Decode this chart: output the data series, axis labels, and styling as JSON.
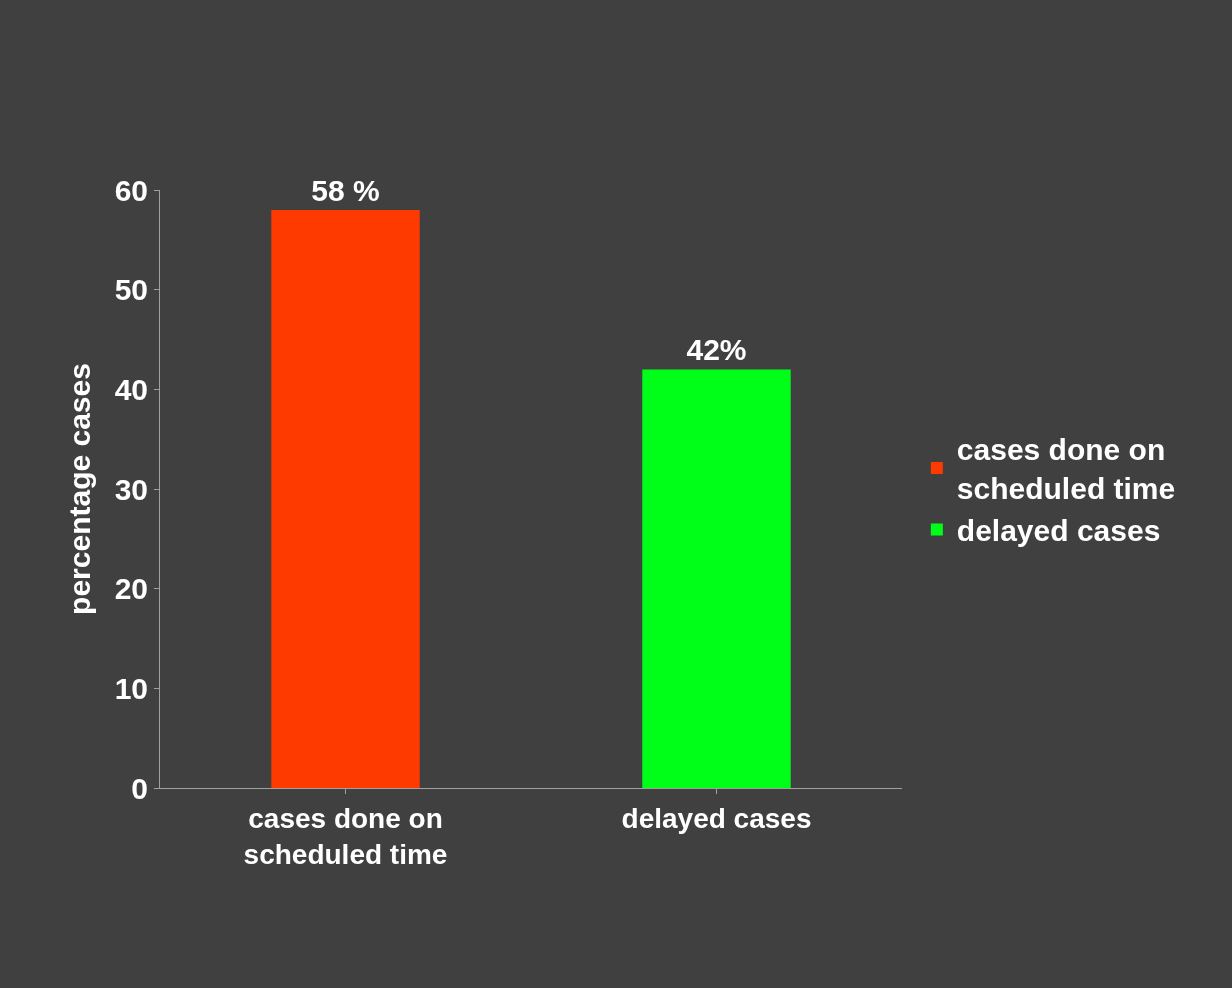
{
  "chart_data": {
    "type": "bar",
    "ylabel": "percentage cases",
    "categories": [
      "cases done on scheduled time",
      "delayed cases"
    ],
    "series": [
      {
        "name": "cases done on scheduled time",
        "color": "#ff3a00",
        "values": [
          58,
          null
        ],
        "value_labels": [
          "58 %",
          null
        ]
      },
      {
        "name": "delayed cases",
        "color": "#00ff18",
        "values": [
          null,
          42
        ],
        "value_labels": [
          null,
          "42%"
        ]
      }
    ],
    "ylim": [
      0,
      60
    ],
    "yticks": [
      0,
      10,
      20,
      30,
      40,
      50,
      60
    ],
    "grid": false,
    "legend": "right"
  }
}
